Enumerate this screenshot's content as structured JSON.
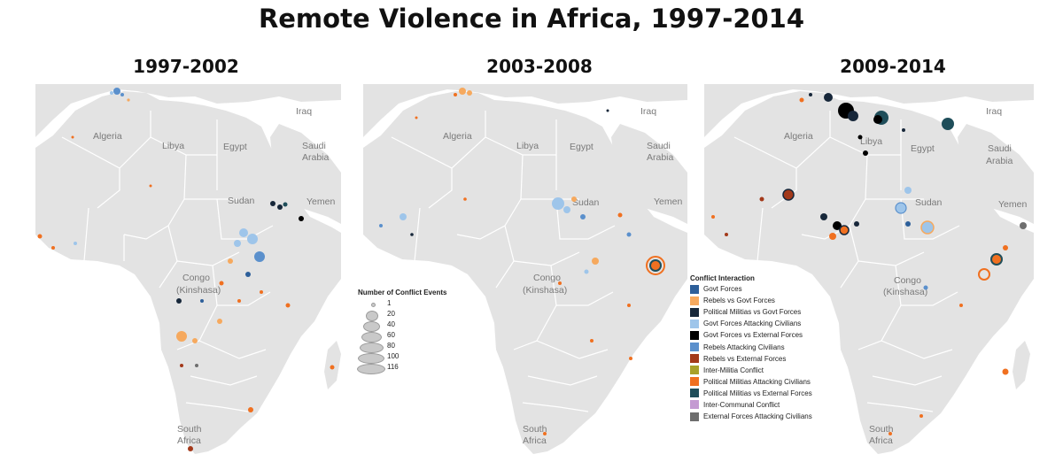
{
  "title": "Remote Violence in Africa, 1997-2014",
  "panels": [
    {
      "title": "1997-2002"
    },
    {
      "title": "2003-2008"
    },
    {
      "title": "2009-2014"
    }
  ],
  "country_labels": [
    "Algeria",
    "Libya",
    "Egypt",
    "Iraq",
    "Saudi",
    "Arabia",
    "Sudan",
    "Yemen",
    "Congo",
    "(Kinshasa)",
    "South",
    "Africa"
  ],
  "size_legend": {
    "title": "Number of Conflict Events",
    "values": [
      "1",
      "20",
      "40",
      "60",
      "80",
      "100",
      "116"
    ]
  },
  "category_legend": {
    "title": "Conflict Interaction",
    "items": [
      {
        "label": "Govt Forces",
        "color": "#2d5f9a"
      },
      {
        "label": "Rebels vs Govt Forces",
        "color": "#f6a95e"
      },
      {
        "label": "Political Militias vs Govt Forces",
        "color": "#17273a"
      },
      {
        "label": "Govt Forces Attacking Civilians",
        "color": "#9ec5ea"
      },
      {
        "label": "Govt Forces vs External Forces",
        "color": "#000000"
      },
      {
        "label": "Rebels Attacking Civilians",
        "color": "#5b90cc"
      },
      {
        "label": "Rebels vs External Forces",
        "color": "#a3391a"
      },
      {
        "label": "Inter-Militia Conflict",
        "color": "#a9a12a"
      },
      {
        "label": "Political Militias Attacking Civilians",
        "color": "#f07020"
      },
      {
        "label": "Political Militias vs External Forces",
        "color": "#1f4e5a"
      },
      {
        "label": "Inter-Communal Conflict",
        "color": "#c49ad2"
      },
      {
        "label": "External Forces Attacking Civilians",
        "color": "#6e6e6e"
      }
    ]
  },
  "colors": {
    "land": "#e3e3e3",
    "border": "#ffffff",
    "sea": "#ffffff"
  }
}
